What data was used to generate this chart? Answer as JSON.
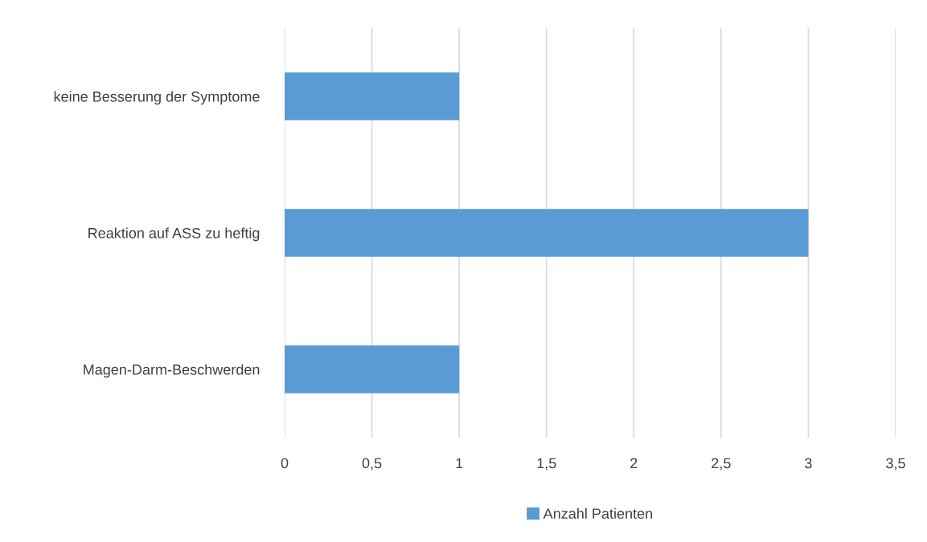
{
  "chart_data": {
    "type": "bar",
    "orientation": "horizontal",
    "categories": [
      "keine Besserung der Symptome",
      "Reaktion auf ASS zu heftig",
      "Magen-Darm-Beschwerden"
    ],
    "series": [
      {
        "name": "Anzahl Patienten",
        "color": "#5b9bd5",
        "values": [
          1,
          3,
          1
        ]
      }
    ],
    "xlim": [
      0,
      3.5
    ],
    "xticks": [
      0,
      {
        "value": 0.5,
        "label": "0,5"
      },
      1,
      {
        "value": 1.5,
        "label": "1,5"
      },
      2,
      {
        "value": 2.5,
        "label": "2,5"
      },
      3,
      {
        "value": 3.5,
        "label": "3,5"
      }
    ],
    "grid": "x",
    "legend": "bottom"
  }
}
